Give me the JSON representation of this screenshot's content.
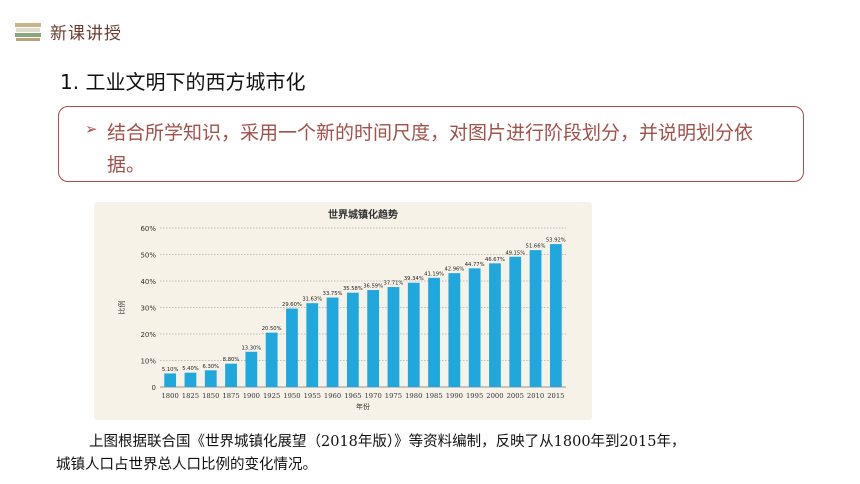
{
  "header": {
    "label": "新课讲授",
    "icon": "books-icon"
  },
  "section": {
    "title": "1. 工业文明下的西方城市化"
  },
  "task": {
    "bullet": "➢",
    "text": "结合所学知识，采用一个新的时间尺度，对图片进行阶段划分，并说明划分依据。"
  },
  "chart_data": {
    "type": "bar",
    "title": "世界城镇化趋势",
    "xlabel": "年份",
    "ylabel": "比例",
    "categories": [
      "1800",
      "1825",
      "1850",
      "1875",
      "1900",
      "1925",
      "1950",
      "1955",
      "1960",
      "1965",
      "1970",
      "1975",
      "1980",
      "1985",
      "1990",
      "1995",
      "2000",
      "2005",
      "2010",
      "2015"
    ],
    "values": [
      5.1,
      5.4,
      6.3,
      8.8,
      13.3,
      20.5,
      29.6,
      31.63,
      33.75,
      35.58,
      36.59,
      37.71,
      39.34,
      41.19,
      42.96,
      44.77,
      46.67,
      49.15,
      51.66,
      53.92
    ],
    "value_labels": [
      "5.10%",
      "5.40%",
      "6.30%",
      "8.80%",
      "13.30%",
      "20.50%",
      "29.60%",
      "31.63%",
      "33.75%",
      "35.58%",
      "36.59%",
      "37.71%",
      "39.34%",
      "41.19%",
      "42.96%",
      "44.77%",
      "46.67%",
      "49.15%",
      "51.66%",
      "53.92%"
    ],
    "y_ticks": [
      "0",
      "10%",
      "20%",
      "30%",
      "40%",
      "50%",
      "60%"
    ],
    "ylim": [
      0,
      60
    ],
    "grid": true,
    "bar_color": "#1fa7de"
  },
  "caption": {
    "line1": "上图根据联合国《世界城镇化展望（2018年版）》等资料编制，反映了从1800年到2015年，",
    "line2": "城镇人口占世界总人口比例的变化情况。"
  }
}
